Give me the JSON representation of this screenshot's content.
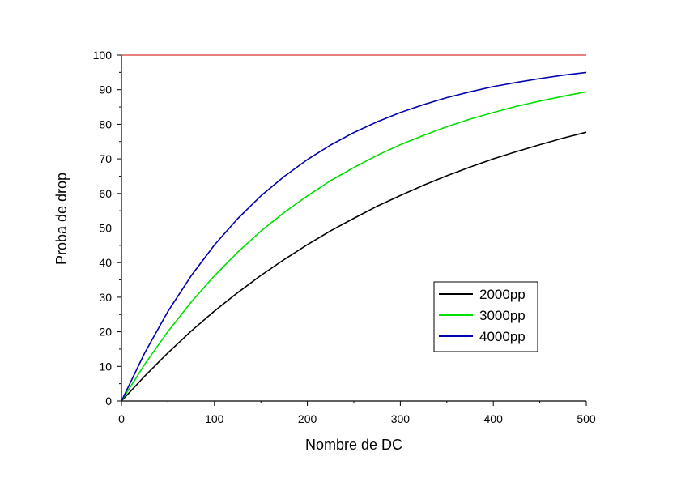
{
  "chart_data": {
    "type": "line",
    "title": "",
    "xlabel": "Nombre de DC",
    "ylabel": "Proba de drop",
    "xlim": [
      0,
      500
    ],
    "ylim": [
      0,
      100
    ],
    "xticks": [
      0,
      100,
      200,
      300,
      400,
      500
    ],
    "yticks": [
      0,
      10,
      20,
      30,
      40,
      50,
      60,
      70,
      80,
      90,
      100
    ],
    "grid": false,
    "legend_position": "lower-right",
    "x": [
      0,
      25,
      50,
      75,
      100,
      125,
      150,
      175,
      200,
      225,
      250,
      275,
      300,
      325,
      350,
      375,
      400,
      425,
      450,
      475,
      500
    ],
    "series": [
      {
        "name": "2000pp",
        "color": "#000000",
        "values": [
          0,
          7.2,
          13.9,
          20.2,
          26.0,
          31.3,
          36.3,
          40.9,
          45.2,
          49.2,
          52.8,
          56.3,
          59.4,
          62.4,
          65.1,
          67.6,
          70.0,
          72.1,
          74.1,
          76.0,
          77.7
        ]
      },
      {
        "name": "3000pp",
        "color": "#00e000",
        "values": [
          0,
          10.6,
          20.1,
          28.6,
          36.2,
          43.0,
          49.1,
          54.5,
          59.3,
          63.7,
          67.5,
          71.0,
          74.1,
          76.8,
          79.3,
          81.5,
          83.4,
          85.2,
          86.7,
          88.1,
          89.4
        ]
      },
      {
        "name": "4000pp",
        "color": "#0000b0",
        "values": [
          0,
          13.9,
          25.9,
          36.2,
          45.1,
          52.7,
          59.3,
          64.9,
          69.8,
          74.0,
          77.6,
          80.7,
          83.4,
          85.7,
          87.7,
          89.4,
          90.9,
          92.1,
          93.2,
          94.2,
          95.0
        ]
      },
      {
        "name": "",
        "color": "#cc0000",
        "values": [
          100,
          100,
          100,
          100,
          100,
          100,
          100,
          100,
          100,
          100,
          100,
          100,
          100,
          100,
          100,
          100,
          100,
          100,
          100,
          100,
          100
        ]
      }
    ]
  }
}
